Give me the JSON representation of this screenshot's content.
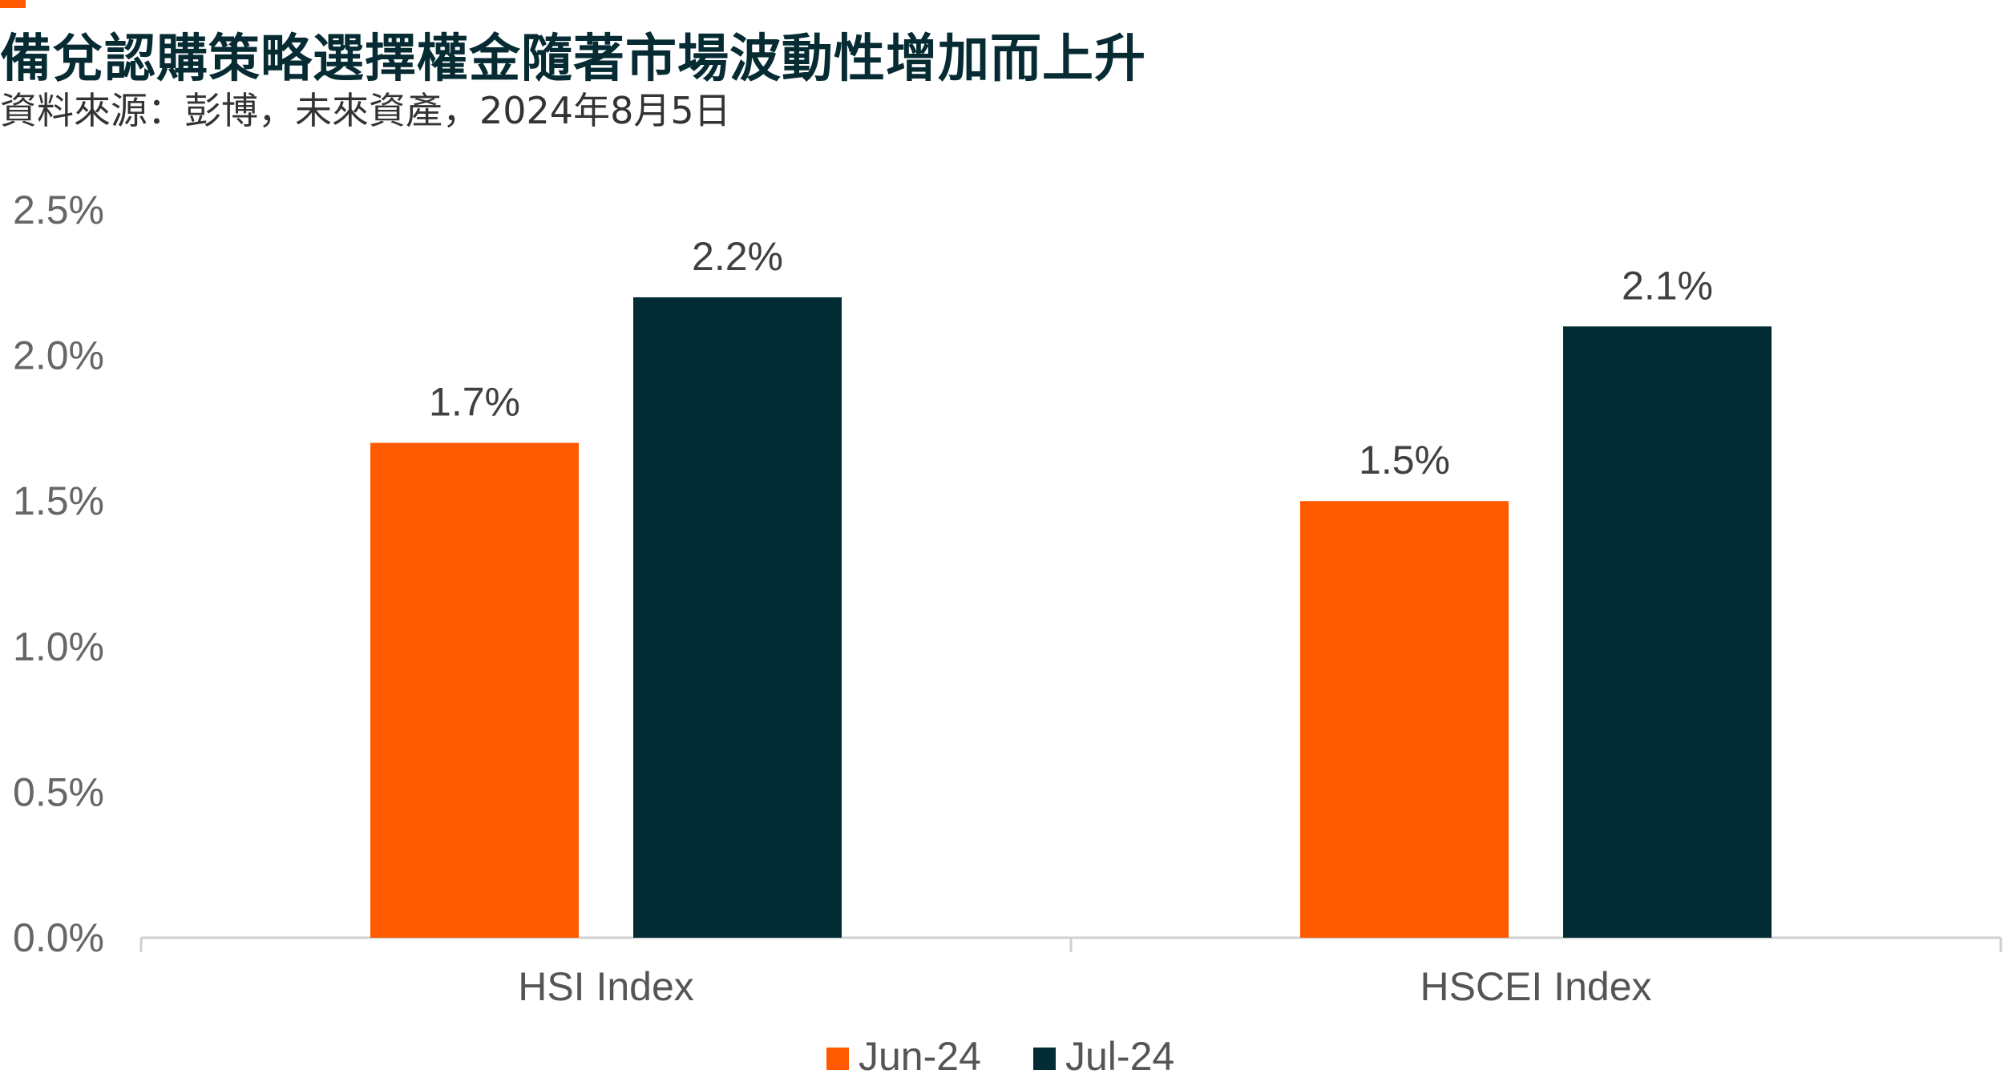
{
  "title": "備兌認購策略選擇權金隨著市場波動性增加而上升",
  "subtitle": "資料來源：彭博，未來資產，2024年8月5日",
  "colors": {
    "accent": "#ff5a00",
    "jun": "#ff5a00",
    "jul": "#022d35"
  },
  "chart_data": {
    "type": "bar",
    "categories": [
      "HSI Index",
      "HSCEI Index"
    ],
    "series": [
      {
        "name": "Jun-24",
        "values": [
          1.7,
          1.5
        ],
        "labels": [
          "1.7%",
          "1.5%"
        ],
        "color": "#ff5a00"
      },
      {
        "name": "Jul-24",
        "values": [
          2.2,
          2.1
        ],
        "labels": [
          "2.2%",
          "2.1%"
        ],
        "color": "#022d35"
      }
    ],
    "ylim": [
      0,
      2.5
    ],
    "yticks": [
      0,
      0.5,
      1.0,
      1.5,
      2.0,
      2.5
    ],
    "ytick_labels": [
      "0.0%",
      "0.5%",
      "1.0%",
      "1.5%",
      "2.0%",
      "2.5%"
    ],
    "grid": false,
    "legend_position": "bottom"
  }
}
